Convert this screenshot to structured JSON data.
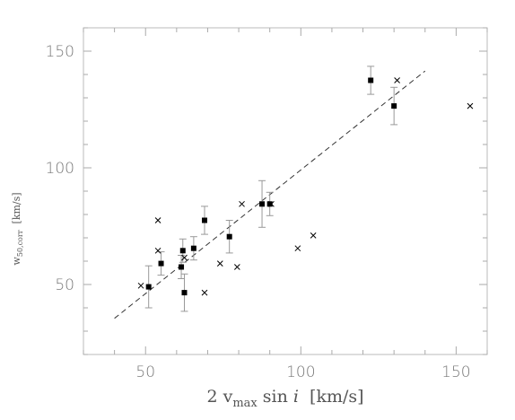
{
  "chart_data": {
    "type": "scatter",
    "xlabel": {
      "prefix": "2 v",
      "subscript": "max",
      "middle": " sin ",
      "italic": "i",
      "unit": "  [km/s]"
    },
    "ylabel": {
      "prefix": "w",
      "subscript": "50,corr",
      "unit": "  [km/s]"
    },
    "xlim": [
      30,
      160
    ],
    "ylim": [
      20,
      160
    ],
    "xticks": [
      50,
      100,
      150
    ],
    "yticks": [
      50,
      100,
      150
    ],
    "grid": false,
    "series": [
      {
        "marker": "filled-square",
        "color": "#000000",
        "points": [
          {
            "x": 51,
            "y": 49,
            "err": 9
          },
          {
            "x": 55,
            "y": 59,
            "err": 5
          },
          {
            "x": 61.5,
            "y": 57.5,
            "err": 5
          },
          {
            "x": 62,
            "y": 64.5,
            "err": 5
          },
          {
            "x": 62.5,
            "y": 46.5,
            "err": 8
          },
          {
            "x": 65.5,
            "y": 65.5,
            "err": 5
          },
          {
            "x": 69,
            "y": 77.5,
            "err": 6
          },
          {
            "x": 77,
            "y": 70.5,
            "err": 7
          },
          {
            "x": 87.5,
            "y": 84.5,
            "err": 10
          },
          {
            "x": 90,
            "y": 84.5,
            "err": 5
          },
          {
            "x": 122.5,
            "y": 137.5,
            "err": 6
          },
          {
            "x": 130,
            "y": 126.5,
            "err": 8
          }
        ]
      },
      {
        "marker": "cross",
        "color": "#000000",
        "points": [
          {
            "x": 48.5,
            "y": 49.5
          },
          {
            "x": 54,
            "y": 77.5
          },
          {
            "x": 54,
            "y": 64.5
          },
          {
            "x": 62.5,
            "y": 61.5
          },
          {
            "x": 69,
            "y": 46.5
          },
          {
            "x": 74,
            "y": 59
          },
          {
            "x": 79.5,
            "y": 57.5
          },
          {
            "x": 81,
            "y": 84.5
          },
          {
            "x": 90.5,
            "y": 84.5
          },
          {
            "x": 99,
            "y": 65.5
          },
          {
            "x": 104,
            "y": 71
          },
          {
            "x": 131,
            "y": 137.5
          },
          {
            "x": 154.5,
            "y": 126.5
          }
        ]
      }
    ],
    "fit_line": {
      "style": "dashed",
      "color": "#333333",
      "x": [
        40,
        140
      ],
      "y": [
        35.5,
        141.5
      ]
    }
  }
}
